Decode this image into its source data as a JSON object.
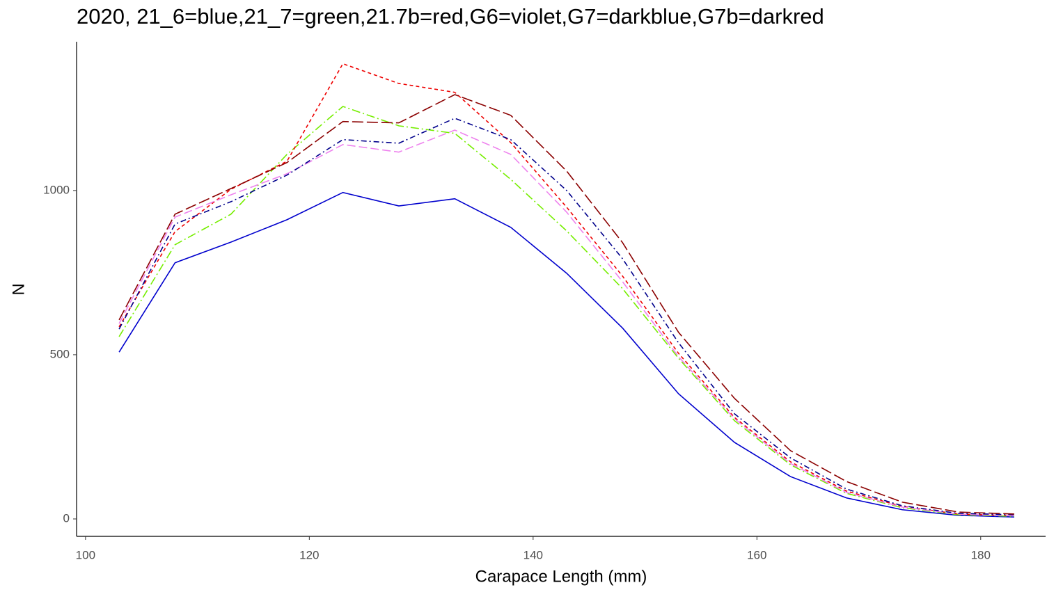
{
  "chart_data": {
    "type": "line",
    "title": "2020, 21_6=blue,21_7=green,21.7b=red,G6=violet,G7=darkblue,G7b=darkred",
    "x_label": "Carapace Length (mm)",
    "y_label": "N",
    "x": [
      103,
      108,
      113,
      118,
      123,
      128,
      133,
      138,
      143,
      148,
      153,
      158,
      163,
      168,
      173,
      178,
      183
    ],
    "series": [
      {
        "color": "#0000CD",
        "dash": "none",
        "values": [
          508,
          780,
          843,
          911,
          994,
          953,
          975,
          888,
          748,
          581,
          381,
          233,
          129,
          64,
          28,
          11,
          6
        ]
      },
      {
        "color": "#76EE00",
        "dash": "12 4 2 4",
        "values": [
          555,
          835,
          928,
          1110,
          1256,
          1197,
          1174,
          1034,
          877,
          701,
          489,
          299,
          165,
          78,
          34,
          13,
          8
        ]
      },
      {
        "color": "#EE0000",
        "dash": "5 4",
        "values": [
          585,
          875,
          1004,
          1089,
          1386,
          1326,
          1299,
          1146,
          949,
          739,
          504,
          309,
          174,
          85,
          38,
          15,
          10
        ]
      },
      {
        "color": "#EE82EE",
        "dash": "12 5",
        "values": [
          595,
          919,
          987,
          1051,
          1140,
          1117,
          1184,
          1110,
          934,
          722,
          494,
          305,
          169,
          81,
          36,
          15,
          10
        ]
      },
      {
        "color": "#00008B",
        "dash": "8 4 2 4",
        "values": [
          578,
          898,
          966,
          1047,
          1155,
          1144,
          1220,
          1155,
          1000,
          792,
          536,
          320,
          186,
          91,
          40,
          17,
          13
        ]
      },
      {
        "color": "#8B0000",
        "dash": "16 5",
        "values": [
          606,
          928,
          1006,
          1085,
          1210,
          1206,
          1292,
          1229,
          1059,
          841,
          568,
          367,
          208,
          114,
          51,
          21,
          15
        ]
      }
    ],
    "xlim": [
      99.2,
      185.8
    ],
    "ylim": [
      -53,
      1453
    ],
    "xticks": [
      100,
      120,
      140,
      160,
      180
    ],
    "yticks": [
      0,
      500,
      1000
    ],
    "grid": false
  }
}
